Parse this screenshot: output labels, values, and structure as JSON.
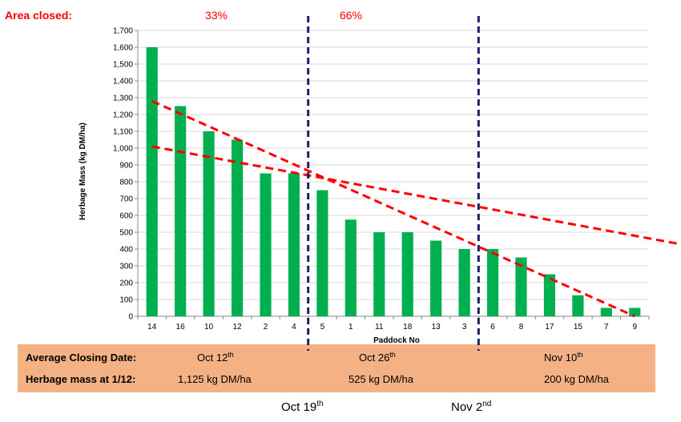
{
  "header": {
    "area_closed_label": "Area closed:",
    "pct_1": "33%",
    "pct_2": "66%"
  },
  "colors": {
    "bar": "#00b050",
    "trend": "#ff0000",
    "divider": "#1f1f6e",
    "panel": "#f4b183",
    "header_text": "#ff0000",
    "grid": "#d9d9d9"
  },
  "chart_data": {
    "type": "bar",
    "title": "",
    "xlabel": "Paddock No",
    "ylabel": "Herbage Mass (kg DM/ha)",
    "ylim": [
      0,
      1700
    ],
    "ytick_step": 100,
    "yticks": [
      "0",
      "100",
      "200",
      "300",
      "400",
      "500",
      "600",
      "700",
      "800",
      "900",
      "1,000",
      "1,100",
      "1,200",
      "1,300",
      "1,400",
      "1,500",
      "1,600",
      "1,700"
    ],
    "categories": [
      "14",
      "16",
      "10",
      "12",
      "2",
      "4",
      "5",
      "1",
      "11",
      "18",
      "13",
      "3",
      "6",
      "8",
      "17",
      "15",
      "7",
      "9"
    ],
    "values": [
      1600,
      1250,
      1100,
      1050,
      850,
      850,
      750,
      575,
      500,
      500,
      450,
      400,
      400,
      350,
      250,
      125,
      50,
      50
    ],
    "grid": "horizontal",
    "trend_lines": [
      {
        "from": {
          "category": "14",
          "value": 1280
        },
        "to": {
          "category": "9",
          "value": 0
        }
      },
      {
        "from": {
          "category": "14",
          "value": 1010
        },
        "to_edge_value": 430
      }
    ]
  },
  "panel": {
    "row1": {
      "label": "Average Closing Date:",
      "values": [
        {
          "base": "Oct 12",
          "sup": "th"
        },
        {
          "base": "Oct 26",
          "sup": "th"
        },
        {
          "base": "Nov 10",
          "sup": "th"
        }
      ]
    },
    "row2": {
      "label": "Herbage mass at 1/12:",
      "values": [
        "1,125 kg DM/ha",
        "525 kg DM/ha",
        "200 kg DM/ha"
      ]
    }
  },
  "footer": {
    "date_1": {
      "base": "Oct 19",
      "sup": "th"
    },
    "date_2": {
      "base": "Nov 2",
      "sup": "nd"
    }
  }
}
